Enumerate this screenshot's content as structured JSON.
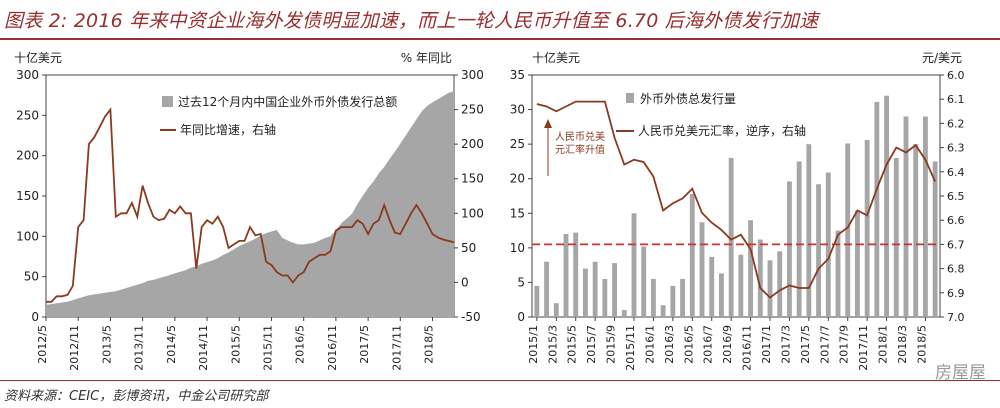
{
  "title": "图表 2: 2016 年来中资企业海外发债明显加速，而上一轮人民币升值至 6.70 后海外债发行加速",
  "source_note": "资料来源：CEIC，彭博资讯，中金公司研究部",
  "watermark": "房屋屋",
  "colors": {
    "brand": "#9b2d2d",
    "area": "#a6a6a6",
    "bar": "#a6a6a6",
    "line": "#8b3a1f",
    "refline": "#d03030"
  },
  "chart_data": [
    {
      "type": "area",
      "left_unit": "十亿美元",
      "right_unit": "% 年同比",
      "y_left_ticks": [
        0,
        50,
        100,
        150,
        200,
        250,
        300
      ],
      "y_right_ticks": [
        -50,
        0,
        50,
        100,
        150,
        200,
        250,
        300
      ],
      "ylim_left": [
        0,
        300
      ],
      "ylim_right": [
        -50,
        300
      ],
      "x_labels": [
        "2012/5",
        "2012/11",
        "2013/5",
        "2013/11",
        "2014/5",
        "2014/11",
        "2015/5",
        "2015/11",
        "2016/5",
        "2016/11",
        "2017/5",
        "2017/11",
        "2018/5"
      ],
      "legend": "top-left",
      "series": [
        {
          "name": "过去12个月内中国企业外币外债发行总额",
          "type": "area",
          "axis": "left",
          "values": [
            15,
            16,
            17,
            18,
            19,
            21,
            23,
            25,
            27,
            28,
            29,
            30,
            31,
            32,
            34,
            36,
            38,
            40,
            42,
            45,
            46,
            48,
            50,
            52,
            54,
            56,
            58,
            61,
            63,
            66,
            68,
            70,
            73,
            77,
            80,
            84,
            88,
            91,
            94,
            97,
            101,
            104,
            106,
            108,
            98,
            95,
            92,
            90,
            90,
            91,
            92,
            95,
            98,
            100,
            108,
            116,
            122,
            128,
            140,
            150,
            160,
            168,
            178,
            186,
            196,
            205,
            215,
            225,
            235,
            245,
            255,
            262,
            266,
            270,
            274,
            278,
            280
          ]
        },
        {
          "name": "年同比增速，右轴",
          "type": "line",
          "axis": "right",
          "values": [
            -28,
            -28,
            -20,
            -20,
            -18,
            -5,
            80,
            90,
            200,
            210,
            225,
            240,
            250,
            95,
            100,
            100,
            115,
            95,
            140,
            115,
            95,
            90,
            92,
            105,
            100,
            110,
            100,
            100,
            20,
            80,
            90,
            85,
            95,
            80,
            50,
            55,
            60,
            60,
            80,
            68,
            70,
            30,
            25,
            15,
            10,
            10,
            0,
            10,
            15,
            30,
            35,
            40,
            40,
            45,
            75,
            80,
            80,
            80,
            90,
            85,
            70,
            85,
            90,
            112,
            90,
            72,
            70,
            85,
            100,
            112,
            100,
            85,
            70,
            65,
            62,
            60,
            58
          ]
        }
      ]
    },
    {
      "type": "bar",
      "left_unit": "十亿美元",
      "right_unit": "元/美元",
      "y_left_ticks": [
        0,
        5,
        10,
        15,
        20,
        25,
        30,
        35
      ],
      "y_right_ticks": [
        "6.0",
        "6.1",
        "6.2",
        "6.3",
        "6.4",
        "6.5",
        "6.6",
        "6.7",
        "6.8",
        "6.9",
        "7.0"
      ],
      "ylim_left": [
        0,
        35
      ],
      "ylim_right": [
        6.0,
        7.0
      ],
      "right_axis_inverted": true,
      "x_labels": [
        "2015/1",
        "2015/3",
        "2015/5",
        "2015/7",
        "2015/9",
        "2015/11",
        "2016/1",
        "2016/3",
        "2016/5",
        "2016/7",
        "2016/9",
        "2016/11",
        "2017/1",
        "2017/3",
        "2017/5",
        "2017/7",
        "2017/9",
        "2017/11",
        "2018/1",
        "2018/3",
        "2018/5"
      ],
      "annotation": "人民币兑美元汇率升值",
      "legend": "top-left",
      "reference_line": {
        "value": 6.7,
        "axis": "right",
        "style": "dashed"
      },
      "series": [
        {
          "name": "外币外债总发行量",
          "type": "bar",
          "axis": "left",
          "values": [
            4.5,
            8,
            2,
            12,
            12.2,
            7,
            8,
            5.5,
            7.8,
            1,
            15,
            10.2,
            5.5,
            1.7,
            4.5,
            5.5,
            17.8,
            13.7,
            8.7,
            6.3,
            23,
            9,
            14,
            11.2,
            8.2,
            9.5,
            19.6,
            22.5,
            25,
            19.2,
            20.9,
            12.5,
            25.1,
            15.4,
            25.6,
            31.1,
            32,
            23,
            29,
            25,
            29,
            22.5
          ]
        },
        {
          "name": "人民币兑美元汇率，逆序，右轴",
          "type": "line",
          "axis": "right",
          "values": [
            6.12,
            6.13,
            6.15,
            6.13,
            6.11,
            6.11,
            6.11,
            6.11,
            6.26,
            6.37,
            6.35,
            6.36,
            6.42,
            6.56,
            6.53,
            6.51,
            6.47,
            6.57,
            6.61,
            6.64,
            6.68,
            6.66,
            6.72,
            6.88,
            6.92,
            6.89,
            6.87,
            6.88,
            6.88,
            6.8,
            6.76,
            6.66,
            6.63,
            6.56,
            6.58,
            6.47,
            6.37,
            6.3,
            6.32,
            6.29,
            6.35,
            6.44
          ]
        }
      ]
    }
  ]
}
